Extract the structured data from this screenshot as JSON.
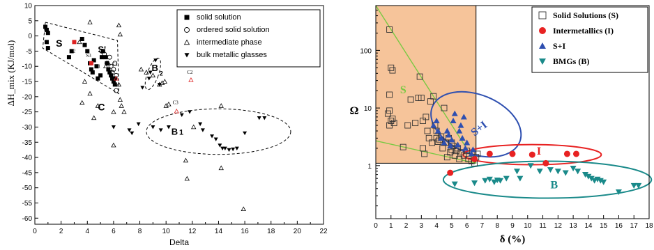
{
  "chart_data": [
    {
      "type": "scatter",
      "title": "",
      "xlabel": "Delta",
      "ylabel": "ΔH_mix (KJ/mol)",
      "xlim": [
        0,
        22
      ],
      "ylim": [
        -62,
        10
      ],
      "xticks": [
        "0",
        "2",
        "4",
        "6",
        "8",
        "10",
        "12",
        "14",
        "16",
        "18",
        "20",
        "22"
      ],
      "yticks": [
        "10",
        "5",
        "0",
        "-5",
        "-10",
        "-15",
        "-20",
        "-25",
        "-30",
        "-35",
        "-40",
        "-45",
        "-50",
        "-55",
        "-60"
      ],
      "legend_position": "top-right",
      "series": [
        {
          "name": "solid solution",
          "marker": "filled-square",
          "color": "#000000",
          "points": [
            [
              0.8,
              3
            ],
            [
              0.9,
              2
            ],
            [
              1,
              1
            ],
            [
              1,
              -4
            ],
            [
              0.9,
              -2
            ],
            [
              2.6,
              -7
            ],
            [
              2.8,
              -5
            ],
            [
              3.6,
              -1
            ],
            [
              3.8,
              -3
            ],
            [
              4,
              -5
            ],
            [
              4.2,
              -9
            ],
            [
              4.3,
              -11
            ],
            [
              4.4,
              -12
            ],
            [
              4.5,
              -8
            ],
            [
              4.7,
              -10
            ],
            [
              4.8,
              -14
            ],
            [
              5,
              -13
            ],
            [
              5.1,
              -7
            ],
            [
              5.2,
              -5
            ],
            [
              5.4,
              -7
            ],
            [
              5.5,
              -9
            ],
            [
              5.6,
              -11
            ],
            [
              5.7,
              -12
            ],
            [
              5.8,
              -13
            ],
            [
              5.9,
              -14
            ],
            [
              6,
              -15
            ],
            [
              6.1,
              -16
            ],
            [
              6.1,
              -14
            ]
          ]
        },
        {
          "name": "ordered solid solution",
          "marker": "open-circle",
          "color": "#000000",
          "points": [
            [
              5.1,
              -5
            ],
            [
              5.3,
              -6
            ],
            [
              5.5,
              -9
            ],
            [
              5.7,
              -7
            ],
            [
              5.8,
              -10
            ],
            [
              5.9,
              -12
            ],
            [
              6,
              -11
            ],
            [
              6.1,
              -9
            ],
            [
              6.2,
              -13
            ],
            [
              6.2,
              -18
            ]
          ]
        },
        {
          "name": "intermediate phase",
          "marker": "open-triangle-up",
          "color": "#000000",
          "points": [
            [
              4.2,
              4.5
            ],
            [
              6.4,
              3.5
            ],
            [
              6.5,
              0.5
            ],
            [
              3.4,
              -2
            ],
            [
              5.6,
              -9
            ],
            [
              5.4,
              -10
            ],
            [
              6.4,
              -16
            ],
            [
              6.5,
              -21
            ],
            [
              6.6,
              -23
            ],
            [
              6.8,
              -25
            ],
            [
              6,
              -25
            ],
            [
              3.8,
              -15
            ],
            [
              4.8,
              -23
            ],
            [
              4.5,
              -27
            ],
            [
              3.6,
              -22
            ],
            [
              4.2,
              -19
            ],
            [
              8.1,
              -11
            ],
            [
              8.5,
              -12
            ],
            [
              9,
              -13
            ],
            [
              9.5,
              -16
            ],
            [
              9.7,
              -15.5
            ],
            [
              9.9,
              -15
            ],
            [
              10,
              -23
            ],
            [
              10.2,
              -22.5
            ],
            [
              14.2,
              -23
            ],
            [
              12.1,
              -30
            ],
            [
              11.5,
              -41
            ],
            [
              14.2,
              -43.5
            ],
            [
              11.6,
              -47
            ],
            [
              15.9,
              -57
            ],
            [
              6,
              -36
            ]
          ]
        },
        {
          "name": "bulk metallic glasses",
          "marker": "filled-triangle-down",
          "color": "#000000",
          "points": [
            [
              9.2,
              -8
            ],
            [
              8.8,
              -12
            ],
            [
              8.7,
              -14
            ],
            [
              9.5,
              -16
            ],
            [
              8.2,
              -17
            ],
            [
              6,
              -30
            ],
            [
              7.2,
              -31
            ],
            [
              7.4,
              -32
            ],
            [
              7.9,
              -29
            ],
            [
              9,
              -30
            ],
            [
              9.6,
              -31
            ],
            [
              10.2,
              -30
            ],
            [
              11.2,
              -26
            ],
            [
              11.8,
              -25
            ],
            [
              12.6,
              -29
            ],
            [
              12.8,
              -31
            ],
            [
              13.5,
              -33
            ],
            [
              13.8,
              -34
            ],
            [
              14.1,
              -36
            ],
            [
              14.3,
              -37
            ],
            [
              14.5,
              -37
            ],
            [
              14.8,
              -37.5
            ],
            [
              15.1,
              -37.3
            ],
            [
              15.4,
              -37
            ],
            [
              16,
              -32
            ],
            [
              17.1,
              -27
            ],
            [
              17.5,
              -27
            ]
          ]
        },
        {
          "name": "red-highlight",
          "marker": "filled-square",
          "color": "#dd2222",
          "points": [
            [
              3,
              -2
            ],
            [
              4.3,
              -9
            ]
          ]
        },
        {
          "name": "red-highlight-triangles",
          "marker": "open-triangle-up",
          "color": "#dd2222",
          "points": [
            [
              6.2,
              -14
            ],
            [
              10.8,
              -24.8
            ],
            [
              11.9,
              -14.5
            ]
          ]
        }
      ],
      "annotations": [
        "S",
        "S'",
        "B2",
        "C",
        "B1",
        "S2",
        "S3",
        "S1",
        "C1",
        "C2",
        "C3"
      ]
    },
    {
      "type": "scatter",
      "title": "",
      "xlabel": "δ (%)",
      "ylabel": "Ω",
      "xlim": [
        0,
        18
      ],
      "ylim": [
        0.12,
        600
      ],
      "y_scale": "log",
      "xticks": [
        "0",
        "1",
        "2",
        "3",
        "4",
        "5",
        "6",
        "7",
        "8",
        "9",
        "10",
        "11",
        "12",
        "13",
        "14",
        "15",
        "16",
        "17",
        "18"
      ],
      "yticks": [
        "100",
        "10",
        "1"
      ],
      "legend_position": "top-right",
      "series": [
        {
          "name": "Solid Solutions (S)",
          "marker": "open-square",
          "color": "#333333",
          "points": [
            [
              0.9,
              230
            ],
            [
              1,
              50
            ],
            [
              1.1,
              45
            ],
            [
              0.9,
              17
            ],
            [
              0.8,
              8
            ],
            [
              0.9,
              9
            ],
            [
              1,
              6
            ],
            [
              1.1,
              6.5
            ],
            [
              1.2,
              5.5
            ],
            [
              0.9,
              5
            ],
            [
              1.8,
              2.1
            ],
            [
              2.1,
              5
            ],
            [
              2.3,
              14
            ],
            [
              2.6,
              5.5
            ],
            [
              2.8,
              15
            ],
            [
              2.9,
              35
            ],
            [
              3,
              15
            ],
            [
              3.1,
              6
            ],
            [
              3.1,
              2
            ],
            [
              3.2,
              1.6
            ],
            [
              3.3,
              7
            ],
            [
              3.4,
              4
            ],
            [
              3.5,
              3
            ],
            [
              3.6,
              13
            ],
            [
              3.7,
              2.5
            ],
            [
              3.8,
              16
            ],
            [
              3.9,
              5
            ],
            [
              4,
              4
            ],
            [
              4,
              3
            ],
            [
              4.1,
              2.6
            ],
            [
              4.2,
              2.8
            ],
            [
              4.3,
              3.2
            ],
            [
              4.4,
              2
            ],
            [
              4.5,
              10
            ],
            [
              4.6,
              2.5
            ],
            [
              4.7,
              1.4
            ],
            [
              4.8,
              3
            ],
            [
              4.9,
              1.7
            ],
            [
              5,
              2.5
            ],
            [
              5,
              1.9
            ],
            [
              5.1,
              2.2
            ],
            [
              5.2,
              1.5
            ],
            [
              5.3,
              1.8
            ],
            [
              5.4,
              2
            ],
            [
              5.5,
              1.3
            ],
            [
              5.6,
              1.7
            ],
            [
              5.8,
              1.5
            ],
            [
              6,
              1.8
            ],
            [
              6.1,
              1.3
            ],
            [
              6.3,
              1.2
            ],
            [
              6.5,
              1.1
            ],
            [
              6.6,
              1.4
            ],
            [
              6.7,
              1.6
            ]
          ]
        },
        {
          "name": "Intermetallics (I)",
          "marker": "filled-circle",
          "color": "#e82222",
          "points": [
            [
              4.9,
              0.75
            ],
            [
              6.5,
              1.3
            ],
            [
              7.5,
              1.6
            ],
            [
              9,
              1.6
            ],
            [
              10.3,
              1.55
            ],
            [
              11.2,
              1.1
            ],
            [
              12.6,
              1.6
            ],
            [
              13.2,
              1.6
            ]
          ]
        },
        {
          "name": "S+I",
          "marker": "filled-triangle-up",
          "color": "#2e4fb0",
          "points": [
            [
              3.8,
              5
            ],
            [
              4,
              6
            ],
            [
              4.1,
              4
            ],
            [
              4.3,
              3
            ],
            [
              4.5,
              2.5
            ],
            [
              4.7,
              4
            ],
            [
              4.8,
              3.4
            ],
            [
              4.9,
              2.2
            ],
            [
              5,
              2.8
            ],
            [
              5.1,
              6
            ],
            [
              5.2,
              8
            ],
            [
              5.4,
              2.3
            ],
            [
              5.5,
              4
            ],
            [
              5.6,
              5
            ],
            [
              5.7,
              3
            ],
            [
              5.8,
              7
            ],
            [
              5.9,
              2
            ],
            [
              6,
              2.5
            ],
            [
              6.3,
              1.6
            ],
            [
              6.4,
              1.9
            ]
          ]
        },
        {
          "name": "BMGs (B)",
          "marker": "filled-triangle-down",
          "color": "#1a8a8a",
          "points": [
            [
              5.2,
              0.48
            ],
            [
              6.5,
              0.5
            ],
            [
              7.2,
              0.55
            ],
            [
              7.5,
              0.58
            ],
            [
              7.8,
              0.52
            ],
            [
              8,
              0.56
            ],
            [
              8.2,
              0.55
            ],
            [
              8.6,
              0.6
            ],
            [
              9.3,
              0.8
            ],
            [
              9.5,
              0.6
            ],
            [
              10.2,
              1
            ],
            [
              10.8,
              0.8
            ],
            [
              11.5,
              0.85
            ],
            [
              12,
              0.8
            ],
            [
              12.5,
              0.75
            ],
            [
              13,
              0.9
            ],
            [
              13.3,
              0.8
            ],
            [
              13.8,
              0.7
            ],
            [
              14,
              0.65
            ],
            [
              14.2,
              0.6
            ],
            [
              14.4,
              0.55
            ],
            [
              14.6,
              0.58
            ],
            [
              14.8,
              0.55
            ],
            [
              15,
              0.52
            ],
            [
              16,
              0.35
            ],
            [
              17,
              0.45
            ],
            [
              17.3,
              0.45
            ]
          ]
        }
      ],
      "annotations": [
        "S",
        "S+I",
        "I",
        "B"
      ]
    }
  ]
}
